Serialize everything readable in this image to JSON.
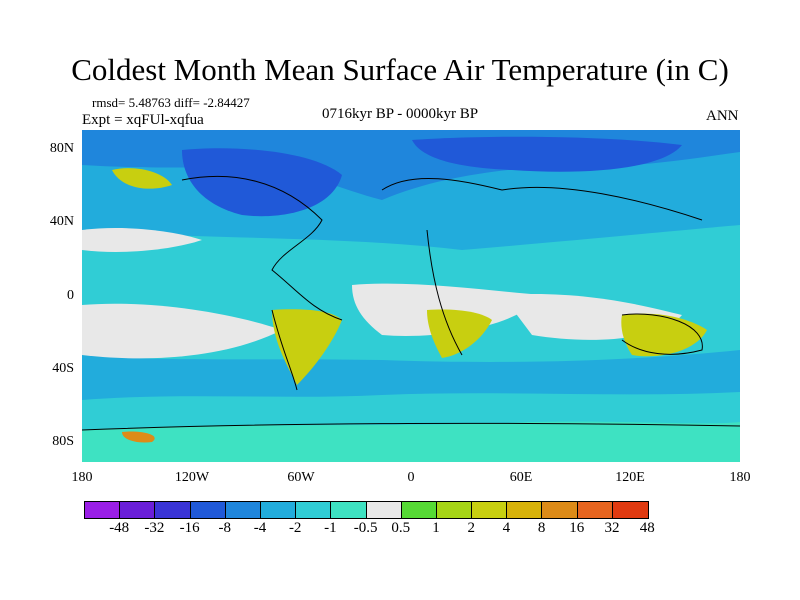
{
  "title": "Coldest Month Mean Surface Air Temperature (in C)",
  "stats": "rmsd= 5.48763  diff= -2.84427",
  "experiment": "Expt = xqFUl-xqfua",
  "period": "0716kyr BP - 0000kyr BP",
  "season": "ANN",
  "lat_labels": [
    "80N",
    "40N",
    "0",
    "40S",
    "80S"
  ],
  "lon_labels": [
    "180",
    "120W",
    "60W",
    "0",
    "60E",
    "120E",
    "180"
  ],
  "colorbar": {
    "colors": [
      "#9a1ee6",
      "#6a1ed8",
      "#3a34d6",
      "#2059d8",
      "#1f86dc",
      "#22acdc",
      "#30cdd5",
      "#3ee2c2",
      "#e8e8e8",
      "#56d935",
      "#a6d416",
      "#c8cf10",
      "#d7b20a",
      "#dd8b18",
      "#e6641e",
      "#e13a10"
    ],
    "labels": [
      "-48",
      "-32",
      "-16",
      "-8",
      "-4",
      "-2",
      "-1",
      "-0.5",
      "0.5",
      "1",
      "2",
      "4",
      "8",
      "16",
      "32",
      "48"
    ]
  },
  "map_colors": {
    "ocean_base": "#22acdc",
    "deep_cold": "#2059d8",
    "cold": "#1f86dc",
    "cool": "#30cdd5",
    "teal": "#3ee2c2",
    "neutral": "#e8e8e8",
    "warm_green": "#56d935",
    "warm_yellow": "#c8cf10",
    "warm_orange": "#dd8b18"
  }
}
